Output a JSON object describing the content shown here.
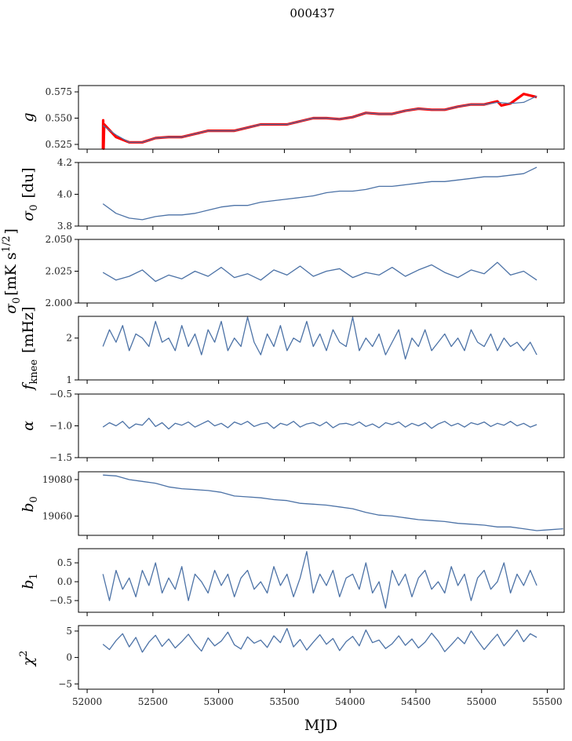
{
  "chart_data": {
    "type": "line",
    "title": "000437",
    "xlabel": "MJD",
    "xlim": [
      51934,
      55628
    ],
    "xticks": [
      "52000",
      "52500",
      "53000",
      "53500",
      "54000",
      "54500",
      "55000",
      "55500"
    ],
    "xtick_values": [
      52000,
      52500,
      53000,
      53500,
      54000,
      54500,
      55000,
      55500
    ],
    "line_color": "#4c72a6",
    "overlay_color": "#ff0000",
    "panels": [
      {
        "ylabel": "g",
        "ylabel_sub": "",
        "ylabel_sup": "",
        "ylim": [
          0.5205,
          0.581
        ],
        "yticks": [
          0.525,
          0.55,
          0.575
        ],
        "ytick_labels": [
          "0.525",
          "0.550",
          "0.575"
        ],
        "series": {
          "x_start": 52120,
          "x_step": 100,
          "values": [
            0.543,
            0.534,
            0.527,
            0.527,
            0.531,
            0.532,
            0.532,
            0.535,
            0.538,
            0.538,
            0.538,
            0.541,
            0.544,
            0.544,
            0.544,
            0.547,
            0.55,
            0.55,
            0.549,
            0.551,
            0.555,
            0.554,
            0.554,
            0.557,
            0.559,
            0.558,
            0.558,
            0.561,
            0.563,
            0.563,
            0.565,
            0.564,
            0.565,
            0.571
          ]
        },
        "overlay": {
          "name": "red",
          "x": [
            52120,
            52122,
            52125,
            52130,
            52220,
            52320,
            52420,
            52520,
            52620,
            52720,
            52820,
            52920,
            53020,
            53120,
            53220,
            53320,
            53420,
            53520,
            53620,
            53720,
            53820,
            53920,
            54020,
            54120,
            54220,
            54320,
            54420,
            54520,
            54620,
            54720,
            54820,
            54920,
            55020,
            55120,
            55150,
            55220,
            55320,
            55420
          ],
          "values": [
            0.5205,
            0.548,
            0.521,
            0.544,
            0.532,
            0.527,
            0.527,
            0.531,
            0.532,
            0.532,
            0.535,
            0.538,
            0.538,
            0.538,
            0.541,
            0.544,
            0.544,
            0.544,
            0.547,
            0.55,
            0.55,
            0.549,
            0.551,
            0.555,
            0.554,
            0.554,
            0.557,
            0.559,
            0.558,
            0.558,
            0.561,
            0.563,
            0.563,
            0.566,
            0.562,
            0.564,
            0.573,
            0.57
          ]
        }
      },
      {
        "ylabel": "σ",
        "ylabel_sub": "0",
        "ylabel_rest": " [du]",
        "ylim": [
          3.8,
          4.2
        ],
        "yticks": [
          3.8,
          4.0,
          4.2
        ],
        "ytick_labels": [
          "3.8",
          "4.0",
          "4.2"
        ],
        "series": {
          "x_start": 52120,
          "x_step": 100,
          "values": [
            3.94,
            3.88,
            3.85,
            3.84,
            3.86,
            3.87,
            3.87,
            3.88,
            3.9,
            3.92,
            3.93,
            3.93,
            3.95,
            3.96,
            3.97,
            3.98,
            3.99,
            4.01,
            4.02,
            4.02,
            4.03,
            4.05,
            4.05,
            4.06,
            4.07,
            4.08,
            4.08,
            4.09,
            4.1,
            4.11,
            4.11,
            4.12,
            4.13,
            4.17
          ]
        }
      },
      {
        "ylabel": "σ",
        "ylabel_sub": "0",
        "ylabel_rest": "[mK s",
        "ylabel_sup": "1/2",
        "ylabel_end": "]",
        "ylim": [
          2.0,
          2.05
        ],
        "yticks": [
          2.0,
          2.025,
          2.05
        ],
        "ytick_labels": [
          "2.000",
          "2.025",
          "2.050"
        ],
        "series": {
          "x_start": 52120,
          "x_step": 100,
          "values": [
            2.024,
            2.018,
            2.021,
            2.026,
            2.017,
            2.022,
            2.019,
            2.025,
            2.021,
            2.028,
            2.02,
            2.023,
            2.018,
            2.026,
            2.022,
            2.029,
            2.021,
            2.025,
            2.027,
            2.02,
            2.024,
            2.022,
            2.028,
            2.021,
            2.026,
            2.03,
            2.024,
            2.02,
            2.026,
            2.023,
            2.032,
            2.022,
            2.025,
            2.018
          ]
        }
      },
      {
        "ylabel": "f",
        "ylabel_sub": "knee",
        "ylabel_rest": " [mHz]",
        "ylim": [
          1.0,
          2.52
        ],
        "yticks": [
          1,
          2
        ],
        "ytick_labels": [
          "1",
          "2"
        ],
        "series": {
          "x_start": 52120,
          "x_step": 50,
          "values": [
            1.8,
            2.2,
            1.9,
            2.3,
            1.7,
            2.1,
            2.0,
            1.8,
            2.4,
            1.9,
            2.0,
            1.7,
            2.3,
            1.8,
            2.1,
            1.6,
            2.2,
            1.9,
            2.4,
            1.7,
            2.0,
            1.8,
            2.5,
            1.9,
            1.6,
            2.1,
            1.8,
            2.3,
            1.7,
            2.0,
            1.9,
            2.4,
            1.8,
            2.1,
            1.7,
            2.2,
            1.9,
            1.8,
            2.5,
            1.7,
            2.0,
            1.8,
            2.1,
            1.6,
            1.9,
            2.2,
            1.5,
            2.0,
            1.8,
            2.2,
            1.7,
            1.9,
            2.1,
            1.8,
            2.0,
            1.7,
            2.2,
            1.9,
            1.8,
            2.1,
            1.7,
            2.0,
            1.8,
            1.9,
            1.7,
            1.9,
            1.6
          ]
        }
      },
      {
        "ylabel": "α",
        "ylabel_sub": "",
        "ylabel_rest": "",
        "ylim": [
          -1.5,
          -0.5
        ],
        "yticks": [
          -1.5,
          -1.0,
          -0.5
        ],
        "ytick_labels": [
          "−1.5",
          "−1.0",
          "−0.5"
        ],
        "series": {
          "x_start": 52120,
          "x_step": 50,
          "values": [
            -1.02,
            -0.95,
            -1.0,
            -0.93,
            -1.04,
            -0.97,
            -0.99,
            -0.88,
            -1.01,
            -0.95,
            -1.05,
            -0.96,
            -0.99,
            -0.94,
            -1.02,
            -0.97,
            -0.92,
            -1.0,
            -0.96,
            -1.03,
            -0.94,
            -0.98,
            -0.93,
            -1.01,
            -0.97,
            -0.95,
            -1.04,
            -0.96,
            -0.99,
            -0.93,
            -1.02,
            -0.97,
            -0.95,
            -1.0,
            -0.94,
            -1.03,
            -0.97,
            -0.96,
            -0.99,
            -0.94,
            -1.01,
            -0.97,
            -1.03,
            -0.95,
            -0.98,
            -0.94,
            -1.02,
            -0.96,
            -1.0,
            -0.95,
            -1.04,
            -0.97,
            -0.93,
            -1.0,
            -0.96,
            -1.02,
            -0.95,
            -0.98,
            -0.94,
            -1.01,
            -0.96,
            -0.99,
            -0.93,
            -1.0,
            -0.96,
            -1.02,
            -0.98
          ]
        }
      },
      {
        "ylabel": "b",
        "ylabel_sub": "0",
        "ylabel_rest": "",
        "ylim": [
          19049.4,
          19084.3
        ],
        "yticks": [
          19060,
          19080
        ],
        "ytick_labels": [
          "19060",
          "19080"
        ],
        "series": {
          "x_start": 52120,
          "x_step": 100,
          "values": [
            19082.5,
            19082,
            19080,
            19079,
            19078,
            19076,
            19075,
            19074.5,
            19074,
            19073,
            19071,
            19070.5,
            19070,
            19069,
            19068.5,
            19067,
            19066.5,
            19066,
            19065,
            19064,
            19062,
            19060.5,
            19060,
            19059,
            19058,
            19057.5,
            19057,
            19056,
            19055.5,
            19055,
            19054,
            19054,
            19053,
            19052,
            19052.5,
            19053
          ]
        }
      },
      {
        "ylabel": "b",
        "ylabel_sub": "1",
        "ylabel_rest": "",
        "ylim": [
          -0.81,
          0.875
        ],
        "yticks": [
          -0.5,
          0.0,
          0.5
        ],
        "ytick_labels": [
          "−0.5",
          "0.0",
          "0.5"
        ],
        "series": {
          "x_start": 52120,
          "x_step": 50,
          "values": [
            0.2,
            -0.5,
            0.3,
            -0.2,
            0.1,
            -0.4,
            0.3,
            -0.1,
            0.5,
            -0.3,
            0.1,
            -0.2,
            0.4,
            -0.5,
            0.2,
            0.0,
            -0.3,
            0.3,
            -0.1,
            0.2,
            -0.4,
            0.1,
            0.3,
            -0.2,
            0.0,
            -0.3,
            0.4,
            -0.1,
            0.2,
            -0.4,
            0.1,
            0.8,
            -0.3,
            0.2,
            -0.1,
            0.3,
            -0.4,
            0.1,
            0.2,
            -0.2,
            0.5,
            -0.3,
            0.0,
            -0.7,
            0.3,
            -0.1,
            0.2,
            -0.4,
            0.1,
            0.3,
            -0.2,
            0.0,
            -0.3,
            0.4,
            -0.1,
            0.2,
            -0.5,
            0.1,
            0.3,
            -0.2,
            0.0,
            0.5,
            -0.3,
            0.2,
            -0.1,
            0.3,
            -0.1
          ]
        }
      },
      {
        "ylabel": "χ",
        "ylabel_sub": "",
        "ylabel_rest": "",
        "ylabel_sup": "2",
        "ylim": [
          -6,
          6.03
        ],
        "yticks": [
          -5,
          0,
          5
        ],
        "ytick_labels": [
          "−5",
          "0",
          "5"
        ],
        "series": {
          "x_start": 52120,
          "x_step": 50,
          "values": [
            2.5,
            1.5,
            3.2,
            4.5,
            2.0,
            3.8,
            1.0,
            2.9,
            4.2,
            2.1,
            3.5,
            1.8,
            3.0,
            4.4,
            2.6,
            1.2,
            3.7,
            2.2,
            3.1,
            4.8,
            2.4,
            1.6,
            3.9,
            2.7,
            3.3,
            1.9,
            4.1,
            2.8,
            5.5,
            2.0,
            3.4,
            1.4,
            2.9,
            4.3,
            2.5,
            3.6,
            1.3,
            3.0,
            4.0,
            2.2,
            5.2,
            2.8,
            3.3,
            1.7,
            2.6,
            4.1,
            2.3,
            3.5,
            1.8,
            2.9,
            4.6,
            3.1,
            1.1,
            2.4,
            3.8,
            2.6,
            5.0,
            3.2,
            1.5,
            3.0,
            4.4,
            2.2,
            3.6,
            5.2,
            3.0,
            4.5,
            3.8
          ]
        }
      }
    ]
  }
}
